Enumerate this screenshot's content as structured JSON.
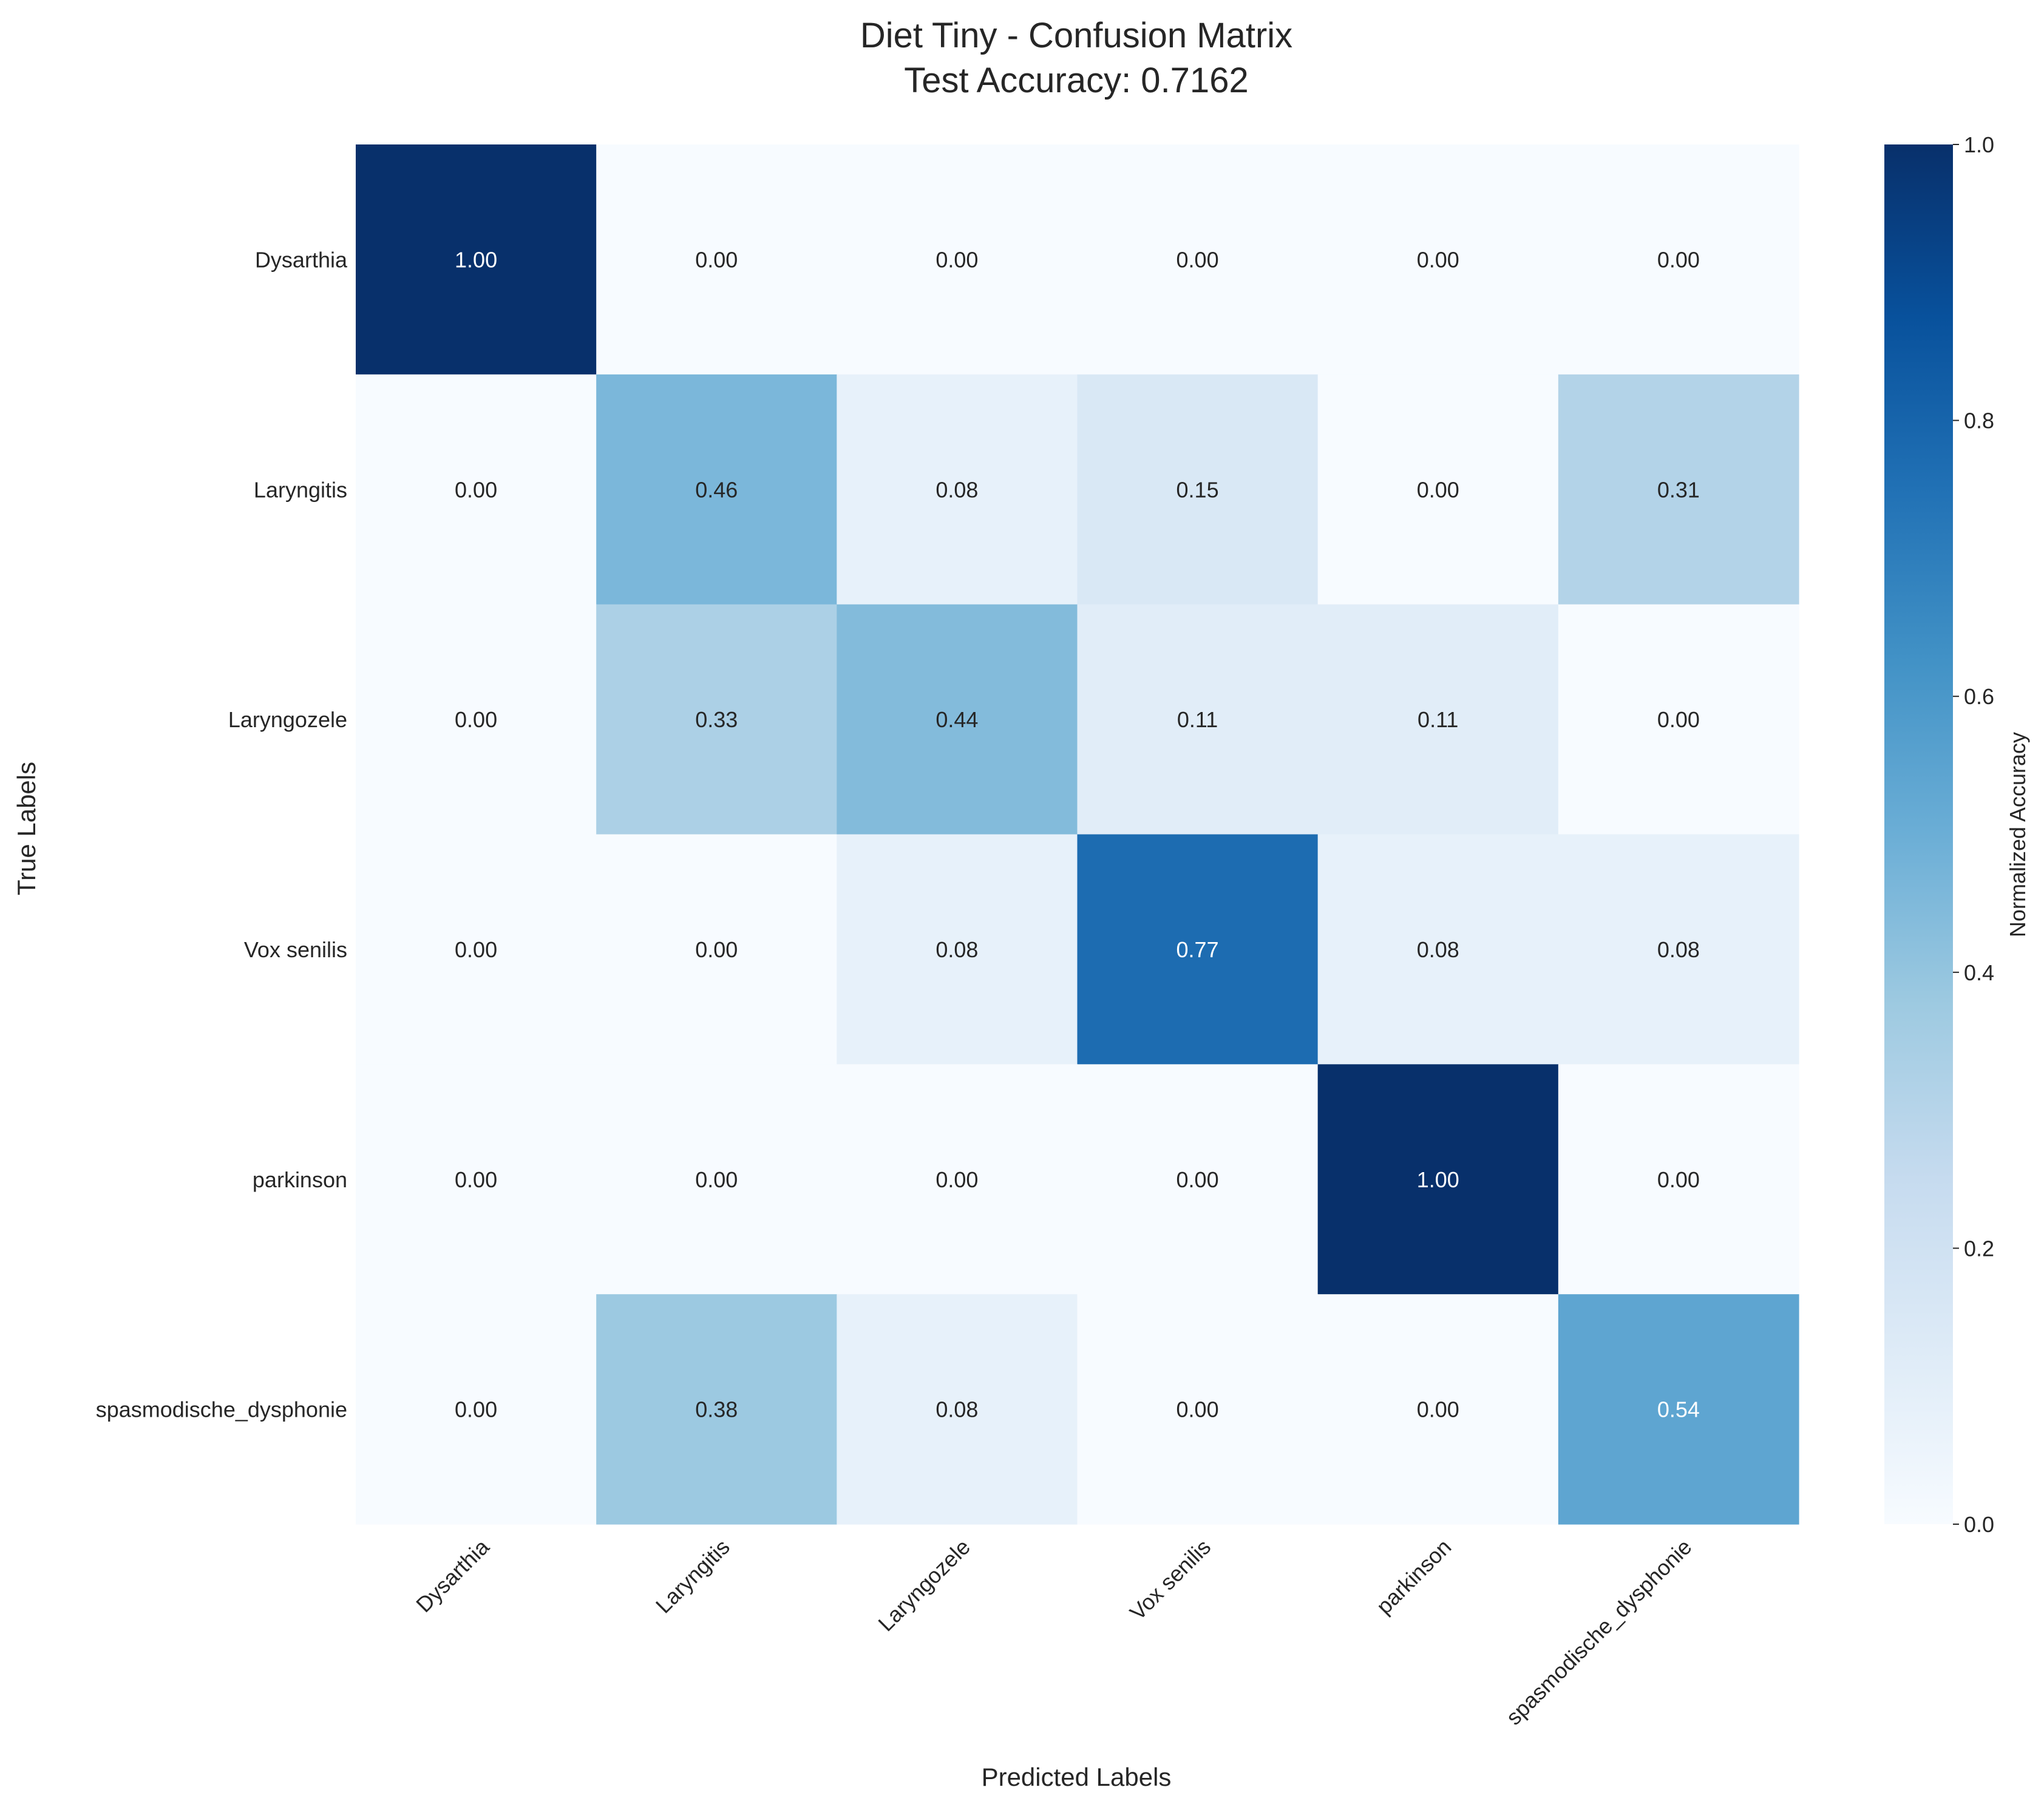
{
  "chart_data": {
    "type": "heatmap",
    "title_lines": [
      "Diet Tiny - Confusion Matrix",
      "Test Accuracy: 0.7162"
    ],
    "xlabel": "Predicted Labels",
    "ylabel": "True Labels",
    "x_categories": [
      "Dysarthia",
      "Laryngitis",
      "Laryngozele",
      "Vox senilis",
      "parkinson",
      "spasmodische_dysphonie"
    ],
    "y_categories": [
      "Dysarthia",
      "Laryngitis",
      "Laryngozele",
      "Vox senilis",
      "parkinson",
      "spasmodische_dysphonie"
    ],
    "values": [
      [
        1.0,
        0.0,
        0.0,
        0.0,
        0.0,
        0.0
      ],
      [
        0.0,
        0.46,
        0.08,
        0.15,
        0.0,
        0.31
      ],
      [
        0.0,
        0.33,
        0.44,
        0.11,
        0.11,
        0.0
      ],
      [
        0.0,
        0.0,
        0.08,
        0.77,
        0.08,
        0.08
      ],
      [
        0.0,
        0.0,
        0.0,
        0.0,
        1.0,
        0.0
      ],
      [
        0.0,
        0.38,
        0.08,
        0.0,
        0.0,
        0.54
      ]
    ],
    "value_format": "0.00",
    "colormap": "Blues",
    "colorbar": {
      "label": "Normalized Accuracy",
      "range": [
        0.0,
        1.0
      ],
      "ticks": [
        "0.0",
        "0.2",
        "0.4",
        "0.6",
        "0.8",
        "1.0"
      ]
    },
    "grid": false
  }
}
